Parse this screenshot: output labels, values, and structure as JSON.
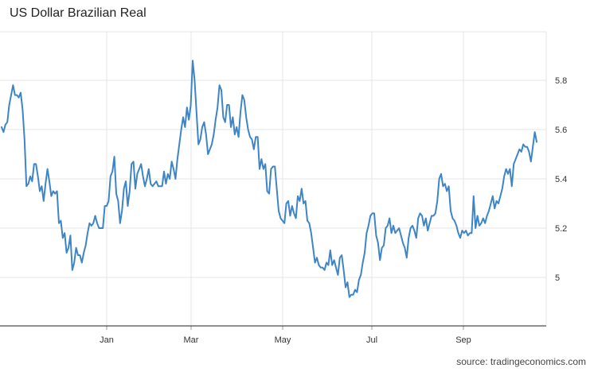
{
  "title": "US Dollar Brazilian Real",
  "source": "source: tradingeconomics.com",
  "chart_data": {
    "type": "line",
    "title": "US Dollar Brazilian Real",
    "xlabel": "",
    "ylabel": "",
    "grid": true,
    "x_tick_labels": [
      "Jan",
      "Mar",
      "May",
      "Jul",
      "Sep"
    ],
    "y_tick_labels": [
      "5",
      "5.2",
      "5.4",
      "5.6",
      "5.8"
    ],
    "yticks": [
      5.0,
      5.2,
      5.4,
      5.6,
      5.8
    ],
    "ylim": [
      4.8,
      6.0
    ],
    "line_color": "#3d85c6",
    "series": [
      {
        "values": [
          5.61,
          5.59,
          5.62,
          5.63,
          5.7,
          5.74,
          5.78,
          5.74,
          5.74,
          5.73,
          5.75,
          5.68,
          5.56,
          5.37,
          5.38,
          5.41,
          5.39,
          5.46,
          5.46,
          5.41,
          5.35,
          5.37,
          5.31,
          5.38,
          5.44,
          5.39,
          5.33,
          5.35,
          5.34,
          5.35,
          5.22,
          5.23,
          5.16,
          5.18,
          5.1,
          5.12,
          5.17,
          5.03,
          5.06,
          5.12,
          5.09,
          5.09,
          5.06,
          5.1,
          5.13,
          5.18,
          5.22,
          5.21,
          5.22,
          5.25,
          5.22,
          5.2,
          5.2,
          5.2,
          5.29,
          5.29,
          5.31,
          5.41,
          5.43,
          5.49,
          5.34,
          5.31,
          5.22,
          5.27,
          5.36,
          5.39,
          5.29,
          5.35,
          5.46,
          5.47,
          5.36,
          5.42,
          5.44,
          5.46,
          5.41,
          5.37,
          5.4,
          5.44,
          5.38,
          5.37,
          5.38,
          5.39,
          5.37,
          5.37,
          5.37,
          5.43,
          5.38,
          5.42,
          5.4,
          5.47,
          5.44,
          5.4,
          5.48,
          5.54,
          5.6,
          5.65,
          5.61,
          5.69,
          5.64,
          5.7,
          5.88,
          5.8,
          5.67,
          5.54,
          5.56,
          5.61,
          5.63,
          5.58,
          5.5,
          5.52,
          5.54,
          5.58,
          5.64,
          5.69,
          5.78,
          5.76,
          5.65,
          5.63,
          5.7,
          5.7,
          5.61,
          5.65,
          5.58,
          5.61,
          5.57,
          5.67,
          5.74,
          5.72,
          5.65,
          5.6,
          5.57,
          5.56,
          5.52,
          5.57,
          5.57,
          5.44,
          5.48,
          5.44,
          5.46,
          5.35,
          5.34,
          5.44,
          5.45,
          5.45,
          5.36,
          5.27,
          5.24,
          5.23,
          5.22,
          5.3,
          5.31,
          5.25,
          5.29,
          5.26,
          5.24,
          5.33,
          5.31,
          5.36,
          5.3,
          5.31,
          5.23,
          5.22,
          5.18,
          5.12,
          5.06,
          5.08,
          5.05,
          5.04,
          5.04,
          5.03,
          5.06,
          5.05,
          5.11,
          5.05,
          5.07,
          5.04,
          5.01,
          5.08,
          5.09,
          5.03,
          4.96,
          4.98,
          4.92,
          4.93,
          4.93,
          4.95,
          4.94,
          4.99,
          5.01,
          5.06,
          5.1,
          5.18,
          5.21,
          5.25,
          5.26,
          5.26,
          5.17,
          5.14,
          5.07,
          5.12,
          5.13,
          5.2,
          5.21,
          5.24,
          5.18,
          5.21,
          5.18,
          5.19,
          5.2,
          5.17,
          5.14,
          5.12,
          5.08,
          5.16,
          5.2,
          5.21,
          5.19,
          5.16,
          5.24,
          5.26,
          5.25,
          5.21,
          5.24,
          5.19,
          5.22,
          5.25,
          5.25,
          5.26,
          5.31,
          5.4,
          5.42,
          5.37,
          5.38,
          5.35,
          5.37,
          5.27,
          5.24,
          5.23,
          5.21,
          5.18,
          5.16,
          5.19,
          5.18,
          5.19,
          5.17,
          5.18,
          5.18,
          5.33,
          5.2,
          5.25,
          5.21,
          5.22,
          5.24,
          5.22,
          5.25,
          5.27,
          5.3,
          5.33,
          5.28,
          5.31,
          5.3,
          5.33,
          5.36,
          5.41,
          5.44,
          5.42,
          5.44,
          5.37,
          5.46,
          5.48,
          5.5,
          5.52,
          5.51,
          5.54,
          5.53,
          5.53,
          5.51,
          5.47,
          5.53,
          5.59,
          5.55
        ]
      }
    ]
  }
}
